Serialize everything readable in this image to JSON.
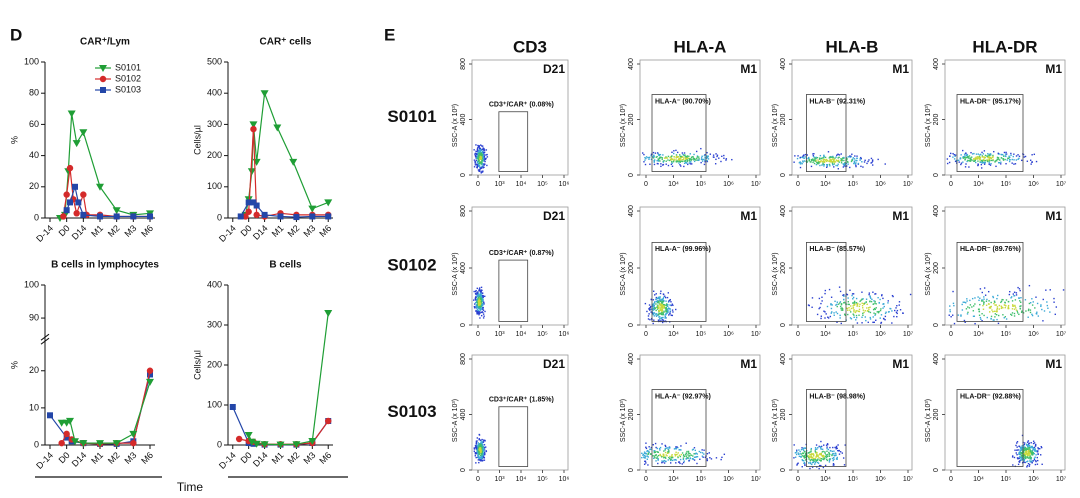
{
  "panel_d_label": "D",
  "time_label": "Time",
  "chart_data": [
    {
      "type": "line",
      "title": "CAR⁺/Lym",
      "ylabel": "%",
      "ylim": [
        0,
        100
      ],
      "yticks": [
        0,
        20,
        40,
        60,
        80,
        100
      ],
      "xlim": [
        -0.3,
        6.3
      ],
      "xticks": [
        {
          "value": 0,
          "label": "D-14"
        },
        {
          "value": 1,
          "label": "D0"
        },
        {
          "value": 2,
          "label": "D14"
        },
        {
          "value": 3,
          "label": "M1"
        },
        {
          "value": 4,
          "label": "M2"
        },
        {
          "value": 5,
          "label": "M3"
        },
        {
          "value": 6,
          "label": "M6"
        }
      ],
      "legend": "top-right",
      "series": [
        {
          "name": "S0101",
          "color": "#1f9e35",
          "marker": "triangle-down",
          "x": [
            0.6,
            0.9,
            1.1,
            1.3,
            1.6,
            2.0,
            3.0,
            4.0,
            5.0,
            6.0
          ],
          "values": [
            0,
            2,
            30,
            67,
            48,
            55,
            20,
            5,
            2,
            3
          ]
        },
        {
          "name": "S0102",
          "color": "#d42a2a",
          "marker": "circle",
          "x": [
            0.8,
            1.0,
            1.2,
            1.4,
            1.6,
            2.0,
            2.2,
            3.0,
            4.0,
            5.0,
            6.0
          ],
          "values": [
            1,
            15,
            32,
            12,
            3,
            15,
            2,
            2,
            1,
            1,
            1
          ]
        },
        {
          "name": "S0103",
          "color": "#2346a8",
          "marker": "square",
          "x": [
            1.0,
            1.2,
            1.5,
            1.7,
            2.0,
            3.0,
            4.0,
            5.0,
            6.0
          ],
          "values": [
            5,
            10,
            20,
            10,
            2,
            1,
            1,
            1,
            1
          ]
        }
      ]
    },
    {
      "type": "line",
      "title": "CAR⁺ cells",
      "ylabel": "Cells/µl",
      "ylim": [
        0,
        500
      ],
      "yticks": [
        0,
        100,
        200,
        300,
        400,
        500
      ],
      "xlim": [
        -0.3,
        6.3
      ],
      "xticks": [
        {
          "value": 0,
          "label": "D-14"
        },
        {
          "value": 1,
          "label": "D0"
        },
        {
          "value": 2,
          "label": "D14"
        },
        {
          "value": 3,
          "label": "M1"
        },
        {
          "value": 4,
          "label": "M2"
        },
        {
          "value": 5,
          "label": "M3"
        },
        {
          "value": 6,
          "label": "M6"
        }
      ],
      "series": [
        {
          "color": "#1f9e35",
          "marker": "triangle-down",
          "x": [
            0.8,
            1.0,
            1.2,
            1.3,
            1.5,
            2.0,
            2.8,
            3.8,
            5.0,
            6.0
          ],
          "values": [
            10,
            60,
            150,
            300,
            180,
            400,
            290,
            180,
            30,
            50
          ]
        },
        {
          "color": "#d42a2a",
          "marker": "circle",
          "x": [
            0.8,
            1.0,
            1.3,
            1.5,
            2.0,
            3.0,
            4.0,
            5.0,
            6.0
          ],
          "values": [
            5,
            20,
            285,
            10,
            5,
            15,
            10,
            10,
            10
          ]
        },
        {
          "color": "#2346a8",
          "marker": "square",
          "x": [
            0.5,
            1.0,
            1.3,
            1.5,
            2.0,
            3.0,
            4.0,
            5.0,
            6.0
          ],
          "values": [
            5,
            50,
            50,
            40,
            10,
            5,
            3,
            5,
            5
          ]
        }
      ]
    },
    {
      "type": "line",
      "title": "B cells in lymphocytes",
      "ylabel": "%",
      "ylim": [
        0,
        100
      ],
      "y_break": [
        25,
        85
      ],
      "yticks": [
        0,
        10,
        20,
        90,
        100
      ],
      "xlim": [
        -0.3,
        6.3
      ],
      "xticks": [
        {
          "value": 0,
          "label": "D-14"
        },
        {
          "value": 1,
          "label": "D0"
        },
        {
          "value": 2,
          "label": "D14"
        },
        {
          "value": 3,
          "label": "M1"
        },
        {
          "value": 4,
          "label": "M2"
        },
        {
          "value": 5,
          "label": "M3"
        },
        {
          "value": 6,
          "label": "M6"
        }
      ],
      "series": [
        {
          "color": "#2346a8",
          "marker": "square",
          "x": [
            0,
            1.0,
            1.3,
            2.0,
            3.0,
            4.0,
            5.0,
            6.0
          ],
          "values": [
            8,
            2,
            1,
            0.5,
            0.3,
            0.3,
            1,
            19
          ]
        },
        {
          "color": "#d42a2a",
          "marker": "circle",
          "x": [
            0.7,
            1.0,
            1.3,
            2.0,
            3.0,
            4.0,
            5.0,
            6.0
          ],
          "values": [
            0.5,
            3,
            1.5,
            0.5,
            0.3,
            0.5,
            0.5,
            20
          ]
        },
        {
          "color": "#1f9e35",
          "marker": "triangle-down",
          "x": [
            0.7,
            1.0,
            1.2,
            1.5,
            2.0,
            3.0,
            4.0,
            5.0,
            6.0
          ],
          "values": [
            6,
            6,
            6.5,
            1,
            0.5,
            0.5,
            0.5,
            3,
            17
          ]
        }
      ]
    },
    {
      "type": "line",
      "title": "B cells",
      "ylabel": "Cells/µl",
      "ylim": [
        0,
        400
      ],
      "yticks": [
        0,
        100,
        200,
        300,
        400
      ],
      "xlim": [
        -0.3,
        6.3
      ],
      "xticks": [
        {
          "value": 0,
          "label": "D-14"
        },
        {
          "value": 1,
          "label": "D0"
        },
        {
          "value": 2,
          "label": "D14"
        },
        {
          "value": 3,
          "label": "M1"
        },
        {
          "value": 4,
          "label": "M2"
        },
        {
          "value": 5,
          "label": "M3"
        },
        {
          "value": 6,
          "label": "M6"
        }
      ],
      "series": [
        {
          "color": "#2346a8",
          "marker": "square",
          "x": [
            0,
            1.0,
            1.3,
            2.0,
            3.0,
            4.0,
            5.0,
            6.0
          ],
          "values": [
            95,
            5,
            3,
            1,
            1,
            1,
            5,
            60
          ]
        },
        {
          "color": "#d42a2a",
          "marker": "circle",
          "x": [
            0.4,
            1.0,
            1.3,
            2.0,
            3.0,
            4.0,
            5.0,
            6.0
          ],
          "values": [
            15,
            10,
            8,
            2,
            2,
            2,
            5,
            60
          ]
        },
        {
          "color": "#1f9e35",
          "marker": "triangle-down",
          "x": [
            1.0,
            1.2,
            1.5,
            2.0,
            3.0,
            4.0,
            5.0,
            6.0
          ],
          "values": [
            25,
            8,
            3,
            2,
            1,
            2,
            10,
            330
          ]
        }
      ]
    }
  ],
  "panel_e": {
    "label": "E",
    "columns": [
      {
        "title": "CD3",
        "y_label": "SSC-A (x 10³)",
        "y_ticks": [
          "0",
          "400",
          "800"
        ],
        "x_ticks": [
          "0",
          "10³",
          "10⁴",
          "10⁵",
          "10⁶"
        ]
      },
      {
        "title": "HLA-A",
        "y_label": "SSC-A (x 10³)",
        "y_ticks": [
          "0",
          "200",
          "400"
        ],
        "x_ticks": [
          "0",
          "10⁴",
          "10⁵",
          "10⁶",
          "10⁷"
        ]
      },
      {
        "title": "HLA-B",
        "y_label": "SSC-A (x 10³)",
        "y_ticks": [
          "0",
          "200",
          "400"
        ],
        "x_ticks": [
          "0",
          "10⁴",
          "10⁵",
          "10⁶",
          "10⁷"
        ]
      },
      {
        "title": "HLA-DR",
        "y_label": "SSC-A (x 10³)",
        "y_ticks": [
          "0",
          "200",
          "400"
        ],
        "x_ticks": [
          "0",
          "10⁴",
          "10⁵",
          "10⁶",
          "10⁷"
        ]
      }
    ],
    "rows": [
      {
        "label": "S0101",
        "plots": [
          {
            "tag": "D21",
            "gate": "CD3⁺/CAR⁺ (0.08%)"
          },
          {
            "tag": "M1",
            "gate": "HLA-A⁻ (90.70%)"
          },
          {
            "tag": "M1",
            "gate": "HLA-B⁻ (92.31%)"
          },
          {
            "tag": "M1",
            "gate": "HLA-DR⁻ (95.17%)"
          }
        ]
      },
      {
        "label": "S0102",
        "plots": [
          {
            "tag": "D21",
            "gate": "CD3⁺/CAR⁺ (0.87%)"
          },
          {
            "tag": "M1",
            "gate": "HLA-A⁻ (99.96%)"
          },
          {
            "tag": "M1",
            "gate": "HLA-B⁻ (85.57%)"
          },
          {
            "tag": "M1",
            "gate": "HLA-DR⁻ (89.76%)"
          }
        ]
      },
      {
        "label": "S0103",
        "plots": [
          {
            "tag": "D21",
            "gate": "CD3⁺/CAR⁺ (1.85%)"
          },
          {
            "tag": "M1",
            "gate": "HLA-A⁻ (92.97%)"
          },
          {
            "tag": "M1",
            "gate": "HLA-B⁻ (98.98%)"
          },
          {
            "tag": "M1",
            "gate": "HLA-DR⁻ (92.88%)"
          }
        ]
      }
    ]
  }
}
